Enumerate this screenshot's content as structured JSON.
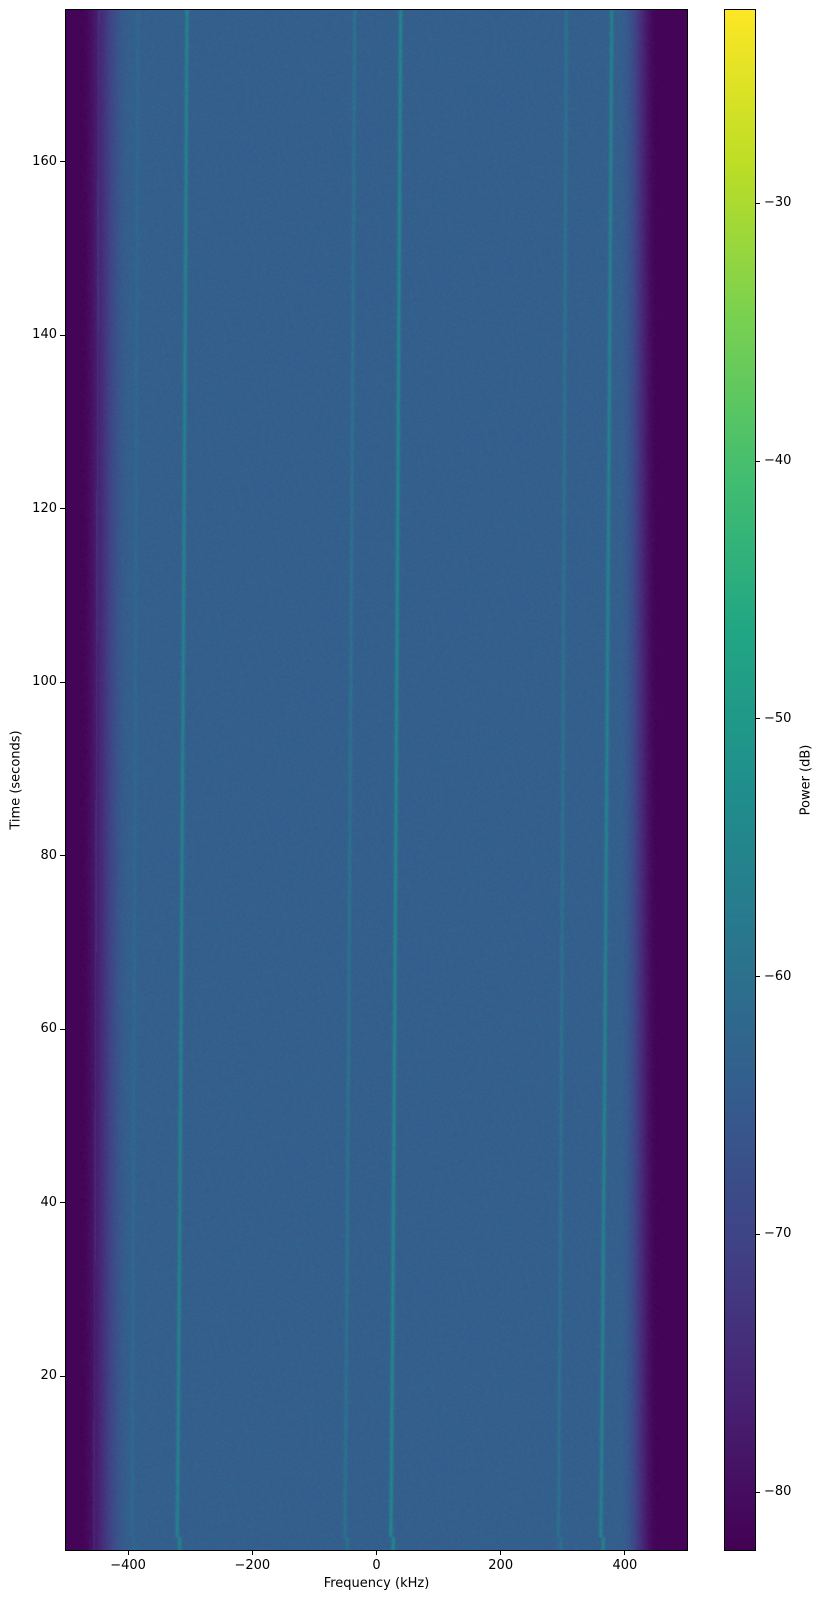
{
  "chart_data": {
    "type": "heatmap",
    "title": "",
    "xlabel": "Frequency (kHz)",
    "ylabel": "Time (seconds)",
    "xlim": [
      -500,
      500
    ],
    "ylim": [
      0,
      177.5
    ],
    "xticks": [
      -400,
      -200,
      0,
      200,
      400
    ],
    "yticks": [
      20,
      40,
      60,
      80,
      100,
      120,
      140,
      160
    ],
    "grid": false,
    "colormap": "viridis",
    "colorbar": {
      "label": "Power (dB)",
      "clim": [
        -82.25,
        -22.5
      ],
      "ticks": [
        -30,
        -40,
        -50,
        -60,
        -70,
        -80
      ]
    },
    "background_power_db": -64,
    "band_edges_khz": [
      -440,
      440
    ],
    "signals": [
      {
        "freq_start_khz": -322,
        "freq_end_khz": -306,
        "peak_db": -56
      },
      {
        "freq_start_khz": 22,
        "freq_end_khz": 38,
        "peak_db": -55
      },
      {
        "freq_start_khz": 360,
        "freq_end_khz": 378,
        "peak_db": -56
      },
      {
        "freq_start_khz": 292,
        "freq_end_khz": 305,
        "peak_db": -60
      },
      {
        "freq_start_khz": -52,
        "freq_end_khz": -36,
        "peak_db": -60
      },
      {
        "freq_start_khz": -395,
        "freq_end_khz": -385,
        "peak_db": -62
      }
    ]
  }
}
